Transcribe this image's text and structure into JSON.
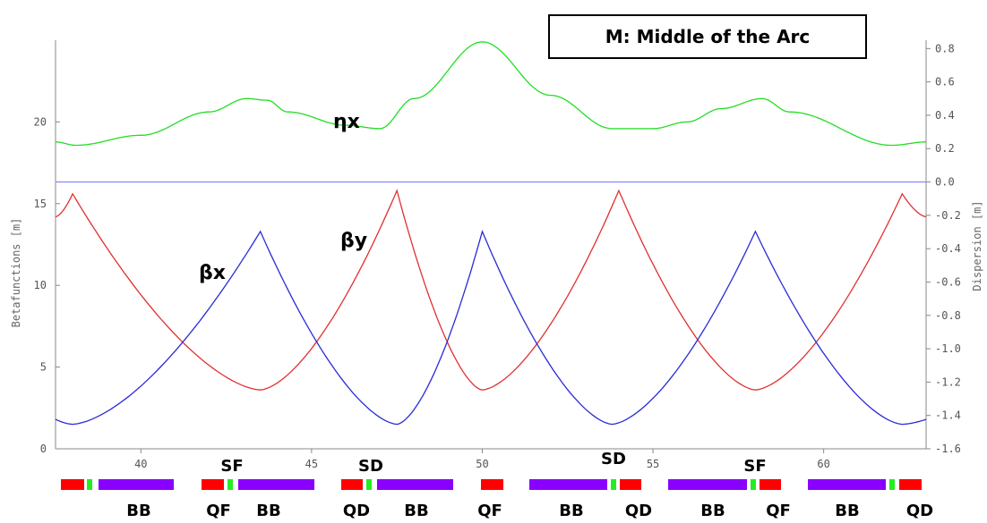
{
  "annotation_box": "M: Middle of the Arc",
  "colors": {
    "eta_x": "#22dd22",
    "beta_y": "#e03030",
    "beta_x": "#2a2ad8",
    "zero_line": "#8080ff",
    "dipole": "#8a00ff",
    "quad": "#ff0000",
    "sext": "#22ee22"
  },
  "chart_data": {
    "type": "line",
    "title": "",
    "xlabel": "",
    "ylabel": "Betafunctions [m]",
    "y2label": "Dispersion [m]",
    "xlim": [
      37.5,
      63
    ],
    "ylim": [
      0,
      25
    ],
    "y2lim": [
      -1.6,
      0.85
    ],
    "x_ticks": [
      "40",
      "45",
      "50",
      "55",
      "60"
    ],
    "y_ticks": [
      "0",
      "5",
      "10",
      "15",
      "20"
    ],
    "y2_ticks": [
      "0.8",
      "0.6",
      "0.4",
      "0.2",
      "0.0",
      "-0.2",
      "-0.4",
      "-0.6",
      "-0.8",
      "-1.0",
      "-1.2",
      "-1.4",
      "-1.6"
    ],
    "series": [
      {
        "name": "ηx",
        "axis": "right",
        "color": "#22dd22",
        "x": [
          37.5,
          38.1,
          40,
          42,
          43.1,
          43.7,
          44.3,
          46,
          47,
          48,
          50,
          52,
          53.8,
          55,
          56,
          57,
          58.2,
          59,
          62,
          63
        ],
        "y": [
          0.24,
          0.22,
          0.28,
          0.42,
          0.5,
          0.49,
          0.42,
          0.34,
          0.32,
          0.5,
          0.84,
          0.52,
          0.32,
          0.32,
          0.36,
          0.44,
          0.5,
          0.42,
          0.22,
          0.24
        ]
      },
      {
        "name": "βy",
        "axis": "left",
        "color": "#e03030",
        "x": [
          37.5,
          38,
          43.5,
          47.5,
          50,
          54,
          58,
          62.3,
          63
        ],
        "y": [
          14.2,
          15.6,
          3.6,
          15.8,
          3.6,
          15.8,
          3.6,
          15.6,
          14.2
        ]
      },
      {
        "name": "βx",
        "axis": "left",
        "color": "#2a2ad8",
        "x": [
          37.5,
          38,
          43.5,
          47.5,
          50,
          53.8,
          58,
          62.3,
          63
        ],
        "y": [
          1.8,
          1.5,
          13.3,
          1.5,
          13.3,
          1.5,
          13.3,
          1.5,
          1.8
        ]
      }
    ],
    "zero_line": 0.0
  },
  "series_labels": {
    "eta_x": "ηx",
    "beta_y": "βy",
    "beta_x": "βx"
  },
  "lattice": {
    "labels_below": [
      "BB",
      "QF",
      "BB",
      "QD",
      "BB",
      "QF",
      "BB",
      "QD",
      "BB",
      "QF",
      "BB",
      "QD"
    ],
    "labels_above": [
      "SF",
      "SD",
      "SD",
      "SF"
    ]
  }
}
